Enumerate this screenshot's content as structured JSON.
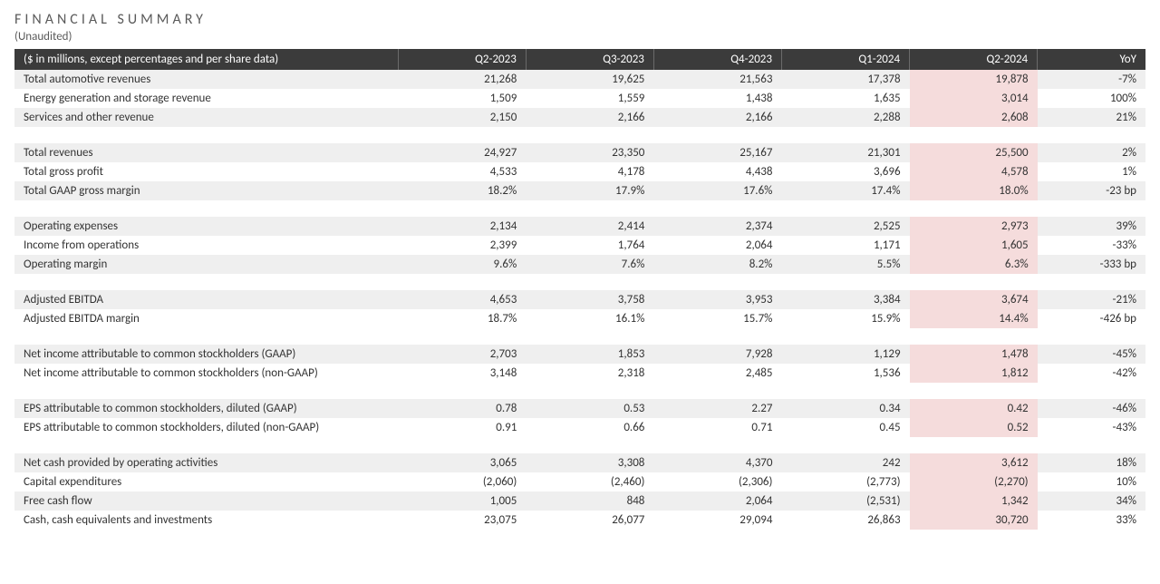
{
  "title": "FINANCIAL SUMMARY",
  "subtitle": "(Unaudited)",
  "table": {
    "header_label": "($ in millions, except percentages and per share data)",
    "columns": [
      "Q2-2023",
      "Q3-2023",
      "Q4-2023",
      "Q1-2024",
      "Q2-2024",
      "YoY"
    ],
    "highlight_column_index": 4,
    "colors": {
      "header_bg": "#3b3b3b",
      "header_fg": "#ffffff",
      "stripe_bg": "#efefef",
      "highlight_bg": "#f5dcdc",
      "text": "#333333",
      "background": "#ffffff"
    },
    "groups": [
      {
        "rows": [
          {
            "label": "Total automotive revenues",
            "values": [
              "21,268",
              "19,625",
              "21,563",
              "17,378",
              "19,878",
              "-7%"
            ],
            "stripe": true
          },
          {
            "label": "Energy generation and storage revenue",
            "values": [
              "1,509",
              "1,559",
              "1,438",
              "1,635",
              "3,014",
              "100%"
            ],
            "stripe": false
          },
          {
            "label": "Services and other revenue",
            "values": [
              "2,150",
              "2,166",
              "2,166",
              "2,288",
              "2,608",
              "21%"
            ],
            "stripe": true
          }
        ]
      },
      {
        "rows": [
          {
            "label": "Total revenues",
            "values": [
              "24,927",
              "23,350",
              "25,167",
              "21,301",
              "25,500",
              "2%"
            ],
            "stripe": true
          },
          {
            "label": "Total gross profit",
            "values": [
              "4,533",
              "4,178",
              "4,438",
              "3,696",
              "4,578",
              "1%"
            ],
            "stripe": false
          },
          {
            "label": "Total GAAP gross margin",
            "values": [
              "18.2%",
              "17.9%",
              "17.6%",
              "17.4%",
              "18.0%",
              "-23 bp"
            ],
            "stripe": true
          }
        ]
      },
      {
        "rows": [
          {
            "label": "Operating expenses",
            "values": [
              "2,134",
              "2,414",
              "2,374",
              "2,525",
              "2,973",
              "39%"
            ],
            "stripe": true
          },
          {
            "label": "Income from operations",
            "values": [
              "2,399",
              "1,764",
              "2,064",
              "1,171",
              "1,605",
              "-33%"
            ],
            "stripe": false
          },
          {
            "label": "Operating margin",
            "values": [
              "9.6%",
              "7.6%",
              "8.2%",
              "5.5%",
              "6.3%",
              "-333 bp"
            ],
            "stripe": true
          }
        ]
      },
      {
        "rows": [
          {
            "label": "Adjusted EBITDA",
            "values": [
              "4,653",
              "3,758",
              "3,953",
              "3,384",
              "3,674",
              "-21%"
            ],
            "stripe": true
          },
          {
            "label": "Adjusted EBITDA margin",
            "values": [
              "18.7%",
              "16.1%",
              "15.7%",
              "15.9%",
              "14.4%",
              "-426 bp"
            ],
            "stripe": false
          }
        ]
      },
      {
        "rows": [
          {
            "label": "Net income attributable to common stockholders (GAAP)",
            "values": [
              "2,703",
              "1,853",
              "7,928",
              "1,129",
              "1,478",
              "-45%"
            ],
            "stripe": true
          },
          {
            "label": "Net income attributable to common stockholders (non-GAAP)",
            "values": [
              "3,148",
              "2,318",
              "2,485",
              "1,536",
              "1,812",
              "-42%"
            ],
            "stripe": false
          }
        ]
      },
      {
        "rows": [
          {
            "label": "EPS attributable to common stockholders, diluted (GAAP)",
            "values": [
              "0.78",
              "0.53",
              "2.27",
              "0.34",
              "0.42",
              "-46%"
            ],
            "stripe": true
          },
          {
            "label": "EPS attributable to common stockholders, diluted (non-GAAP)",
            "values": [
              "0.91",
              "0.66",
              "0.71",
              "0.45",
              "0.52",
              "-43%"
            ],
            "stripe": false
          }
        ]
      },
      {
        "rows": [
          {
            "label": "Net cash provided by operating activities",
            "values": [
              "3,065",
              "3,308",
              "4,370",
              "242",
              "3,612",
              "18%"
            ],
            "stripe": true
          },
          {
            "label": "Capital expenditures",
            "values": [
              "(2,060)",
              "(2,460)",
              "(2,306)",
              "(2,773)",
              "(2,270)",
              "10%"
            ],
            "stripe": false
          },
          {
            "label": "Free cash flow",
            "values": [
              "1,005",
              "848",
              "2,064",
              "(2,531)",
              "1,342",
              "34%"
            ],
            "stripe": true
          },
          {
            "label": "Cash, cash equivalents and investments",
            "values": [
              "23,075",
              "26,077",
              "29,094",
              "26,863",
              "30,720",
              "33%"
            ],
            "stripe": false
          }
        ]
      }
    ]
  }
}
